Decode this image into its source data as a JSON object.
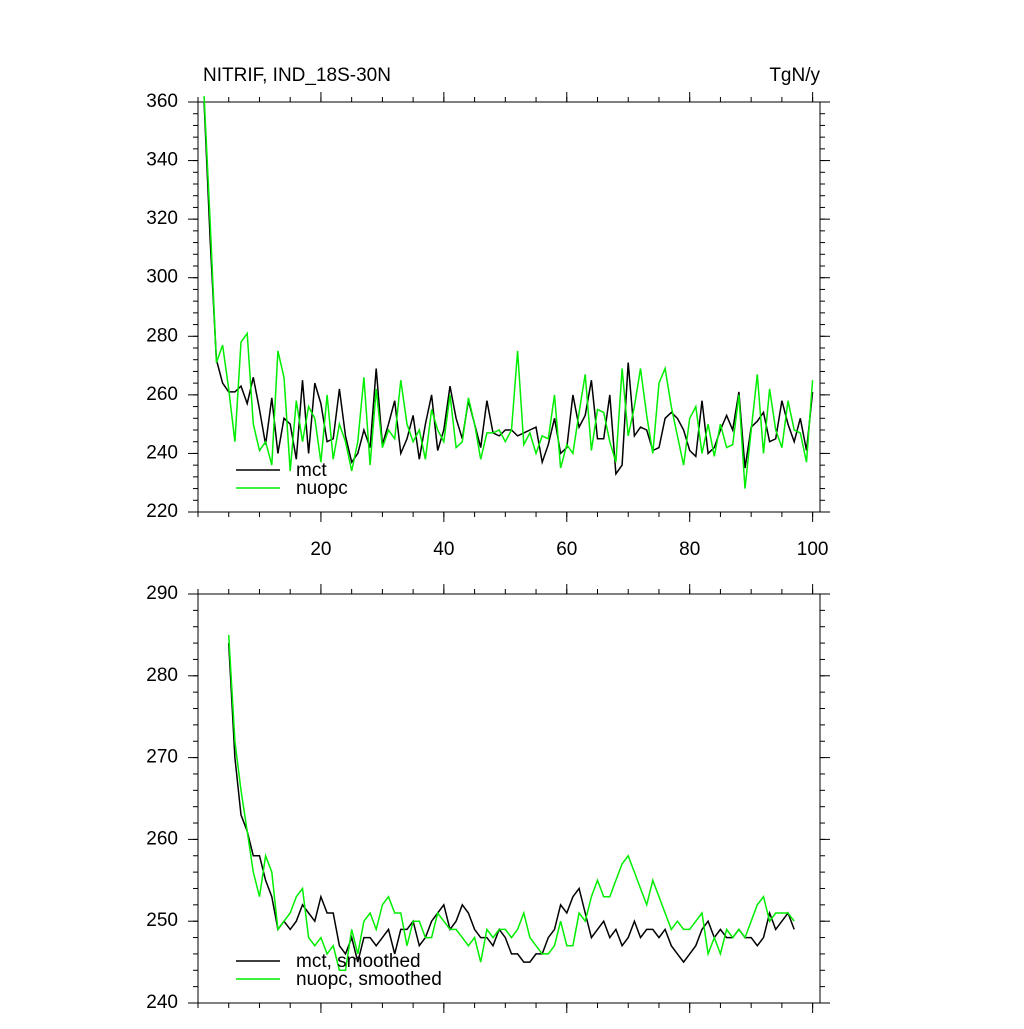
{
  "chart_data": [
    {
      "type": "line",
      "title": "NITRIF, IND_18S-30N",
      "units": "TgN/y",
      "x": [
        1,
        2,
        3,
        4,
        5,
        6,
        7,
        8,
        9,
        10,
        11,
        12,
        13,
        14,
        15,
        16,
        17,
        18,
        19,
        20,
        21,
        22,
        23,
        24,
        25,
        26,
        27,
        28,
        29,
        30,
        31,
        32,
        33,
        34,
        35,
        36,
        37,
        38,
        39,
        40,
        41,
        42,
        43,
        44,
        45,
        46,
        47,
        48,
        49,
        50,
        51,
        52,
        53,
        54,
        55,
        56,
        57,
        58,
        59,
        60,
        61,
        62,
        63,
        64,
        65,
        66,
        67,
        68,
        69,
        70,
        71,
        72,
        73,
        74,
        75,
        76,
        77,
        78,
        79,
        80,
        81,
        82,
        83,
        84,
        85,
        86,
        87,
        88,
        89,
        90,
        91,
        92,
        93,
        94,
        95,
        96,
        97,
        98,
        99,
        100
      ],
      "series": [
        {
          "name": "mct",
          "color": "#000000",
          "values": [
            360,
            312,
            272,
            264,
            261,
            261,
            263,
            257,
            266,
            255,
            243,
            259,
            240,
            252,
            250,
            238,
            265,
            240,
            264,
            257,
            244,
            245,
            262,
            246,
            237,
            240,
            248,
            242,
            269,
            243,
            250,
            258,
            240,
            245,
            253,
            238,
            250,
            260,
            241,
            248,
            263,
            252,
            245,
            258,
            250,
            242,
            258,
            247,
            246,
            248,
            248,
            246,
            247,
            248,
            249,
            237,
            243,
            252,
            240,
            242,
            260,
            249,
            253,
            265,
            245,
            245,
            260,
            233,
            236,
            271,
            246,
            249,
            248,
            241,
            242,
            252,
            254,
            252,
            248,
            241,
            239,
            258,
            240,
            242,
            248,
            253,
            248,
            261,
            235,
            249,
            251,
            254,
            244,
            245,
            258,
            250,
            244,
            252,
            241,
            261
          ]
        },
        {
          "name": "nuopc",
          "color": "#00ee00",
          "values": [
            362,
            318,
            271,
            277,
            262,
            244,
            278,
            281,
            250,
            241,
            244,
            236,
            275,
            266,
            234,
            258,
            244,
            256,
            252,
            237,
            260,
            238,
            250,
            244,
            234,
            244,
            266,
            236,
            262,
            242,
            248,
            245,
            265,
            250,
            244,
            248,
            238,
            255,
            248,
            244,
            260,
            242,
            244,
            259,
            250,
            238,
            247,
            247,
            248,
            244,
            248,
            275,
            243,
            247,
            240,
            246,
            245,
            260,
            235,
            243,
            240,
            254,
            267,
            241,
            255,
            254,
            244,
            237,
            269,
            246,
            256,
            269,
            253,
            240,
            264,
            269,
            256,
            246,
            236,
            252,
            256,
            240,
            250,
            239,
            250,
            242,
            243,
            260,
            228,
            248,
            267,
            240,
            262,
            248,
            242,
            258,
            248,
            247,
            237,
            265
          ]
        }
      ],
      "xlim": [
        0,
        101.2
      ],
      "ylim": [
        220,
        360
      ],
      "xticks": [
        20,
        40,
        60,
        80,
        100
      ],
      "yticks": [
        220,
        240,
        260,
        280,
        300,
        320,
        340,
        360
      ],
      "legend": "lower left"
    },
    {
      "type": "line",
      "x": [
        5,
        6,
        7,
        8,
        9,
        10,
        11,
        12,
        13,
        14,
        15,
        16,
        17,
        18,
        19,
        20,
        21,
        22,
        23,
        24,
        25,
        26,
        27,
        28,
        29,
        30,
        31,
        32,
        33,
        34,
        35,
        36,
        37,
        38,
        39,
        40,
        41,
        42,
        43,
        44,
        45,
        46,
        47,
        48,
        49,
        50,
        51,
        52,
        53,
        54,
        55,
        56,
        57,
        58,
        59,
        60,
        61,
        62,
        63,
        64,
        65,
        66,
        67,
        68,
        69,
        70,
        71,
        72,
        73,
        74,
        75,
        76,
        77,
        78,
        79,
        80,
        81,
        82,
        83,
        84,
        85,
        86,
        87,
        88,
        89,
        90,
        91,
        92,
        93,
        94,
        95,
        96,
        97
      ],
      "series": [
        {
          "name": "mct, smoothed",
          "color": "#000000",
          "values": [
            284,
            270,
            263,
            261,
            258,
            258,
            255,
            253,
            249,
            250,
            249,
            250,
            252,
            251,
            250,
            253,
            251,
            251,
            247,
            246,
            248,
            245,
            248,
            248,
            247,
            248,
            249,
            246,
            249,
            249,
            250,
            247,
            248,
            250,
            251,
            252,
            249,
            250,
            252,
            251,
            249,
            248,
            248,
            247,
            249,
            248,
            246,
            246,
            245,
            245,
            246,
            246,
            248,
            249,
            252,
            251,
            253,
            254,
            251,
            248,
            249,
            250,
            248,
            249,
            247,
            248,
            250,
            248,
            249,
            249,
            248,
            249,
            247,
            246,
            245,
            246,
            247,
            249,
            250,
            248,
            249,
            248,
            248,
            249,
            248,
            248,
            247,
            248,
            251,
            249,
            250,
            251,
            249
          ]
        },
        {
          "name": "nuopc, smoothed",
          "color": "#00ee00",
          "values": [
            285,
            272,
            266,
            261,
            256,
            253,
            258,
            256,
            249,
            250,
            251,
            253,
            254,
            248,
            247,
            248,
            246,
            247,
            244,
            244,
            249,
            246,
            250,
            251,
            249,
            252,
            253,
            251,
            251,
            247,
            250,
            250,
            248,
            248,
            251,
            250,
            249,
            249,
            248,
            247,
            248,
            245,
            249,
            248,
            249,
            249,
            248,
            249,
            251,
            248,
            247,
            246,
            246,
            247,
            250,
            247,
            247,
            251,
            250,
            253,
            255,
            253,
            253,
            255,
            257,
            258,
            256,
            254,
            252,
            255,
            253,
            251,
            249,
            250,
            249,
            249,
            250,
            251,
            246,
            248,
            246,
            249,
            248,
            249,
            248,
            250,
            252,
            253,
            250,
            251,
            251,
            251,
            250
          ]
        }
      ],
      "xlim": [
        0,
        101.2
      ],
      "ylim": [
        240,
        290
      ],
      "xticks": [
        20,
        40,
        60,
        80,
        100
      ],
      "yticks": [
        240,
        250,
        260,
        270,
        280,
        290
      ],
      "legend": "lower left"
    }
  ]
}
